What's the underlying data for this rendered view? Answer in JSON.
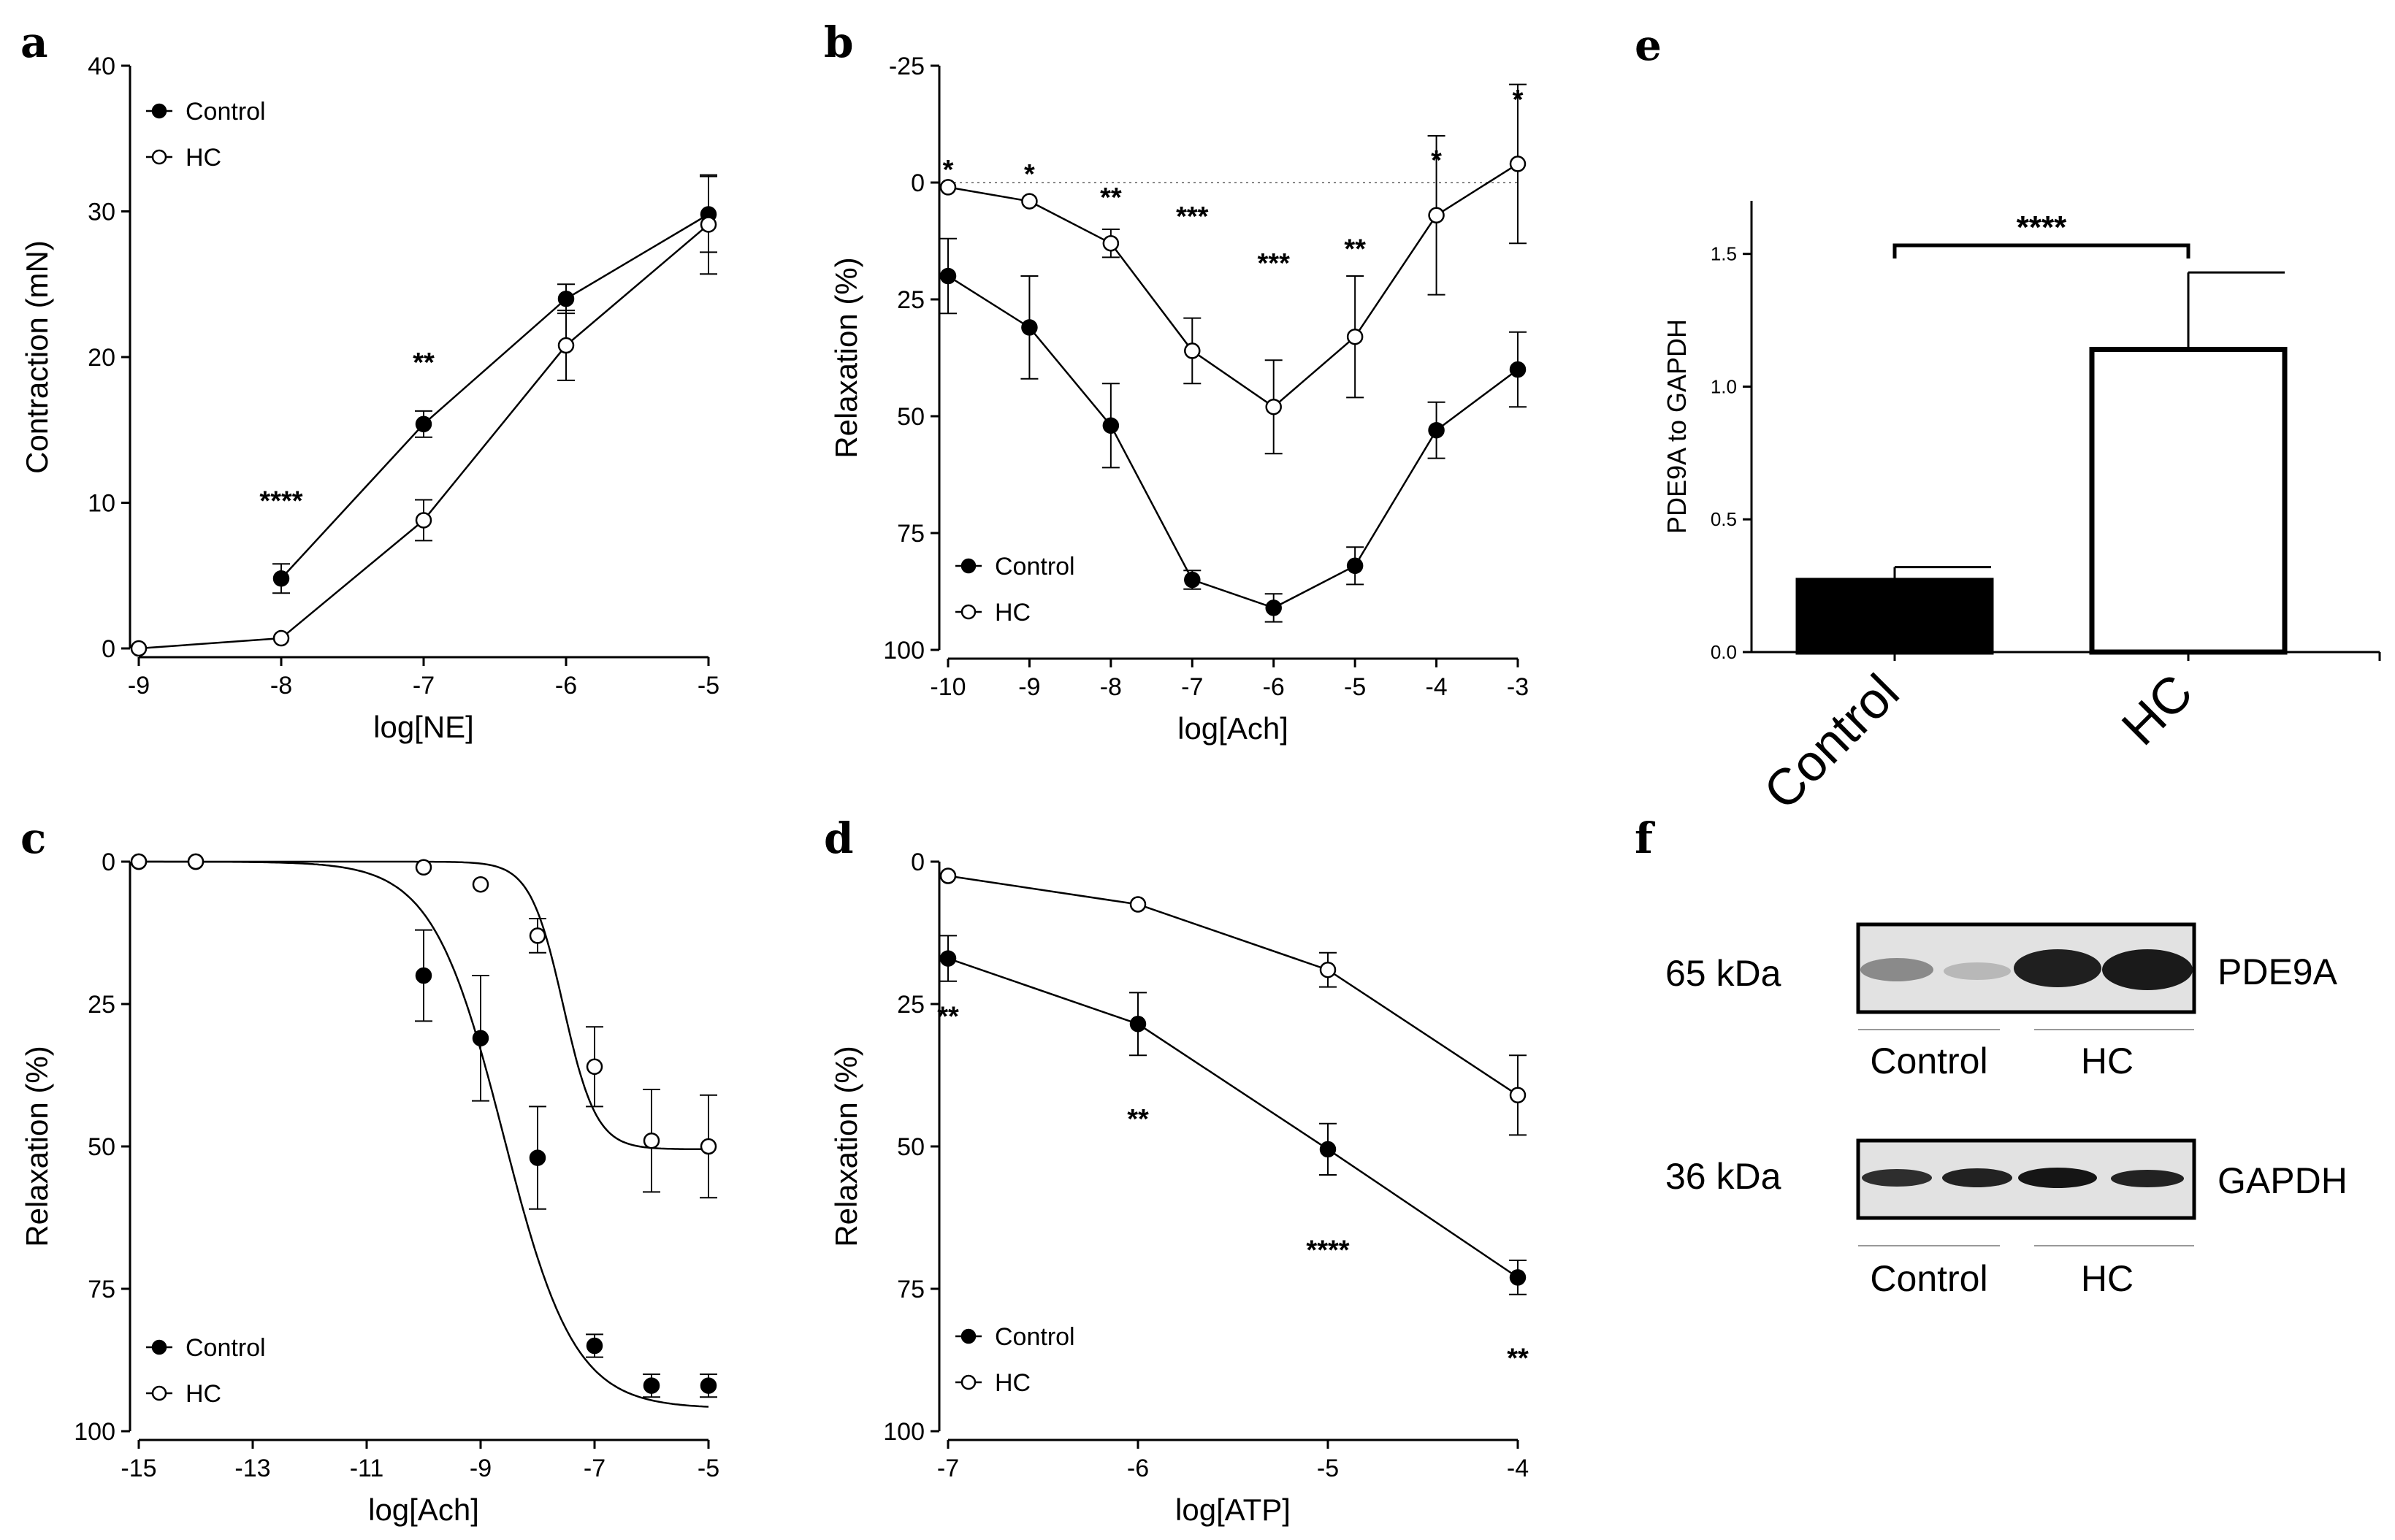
{
  "chart_data": [
    {
      "panel": "a",
      "type": "line",
      "xlabel": "log[NE]",
      "ylabel": "Contraction (mN)",
      "xlim": [
        -9,
        -5
      ],
      "ylim": [
        0,
        40
      ],
      "xticks": [
        -9,
        -8,
        -7,
        -6,
        -5
      ],
      "yticks": [
        0,
        10,
        20,
        30,
        40
      ],
      "legend": [
        "Control",
        "HC"
      ],
      "legend_position": "top-left",
      "series": [
        {
          "name": "Control",
          "marker": "filled",
          "x": [
            -8,
            -7,
            -6,
            -5
          ],
          "y": [
            4.8,
            15.4,
            24.0,
            29.8
          ],
          "err": [
            1.0,
            0.9,
            1.0,
            2.6
          ]
        },
        {
          "name": "HC",
          "marker": "open",
          "x": [
            -9,
            -8,
            -7,
            -6,
            -5
          ],
          "y": [
            0,
            0.7,
            8.8,
            20.8,
            29.1
          ],
          "err": [
            0,
            0,
            1.4,
            2.4,
            3.4
          ]
        }
      ],
      "sig": [
        {
          "x": -8,
          "y": 10.2,
          "text": "****"
        },
        {
          "x": -7,
          "y": 19.7,
          "text": "**"
        }
      ]
    },
    {
      "panel": "b",
      "type": "line",
      "xlabel": "log[Ach]",
      "ylabel": "Relaxation (%)",
      "xlim": [
        -10,
        -3
      ],
      "ylim": [
        -25,
        100
      ],
      "y_inverted": true,
      "xticks": [
        -10,
        -9,
        -8,
        -7,
        -6,
        -5,
        -4,
        -3
      ],
      "yticks": [
        -25,
        0,
        25,
        50,
        75,
        100
      ],
      "reference_line": 0,
      "legend": [
        "Control",
        "HC"
      ],
      "legend_position": "bottom-left",
      "series": [
        {
          "name": "Control",
          "marker": "filled",
          "x": [
            -10,
            -9,
            -8,
            -7,
            -6,
            -5,
            -4,
            -3
          ],
          "y": [
            20,
            31,
            52,
            85,
            91,
            82,
            53,
            40
          ],
          "err": [
            8,
            11,
            9,
            2,
            3,
            4,
            6,
            8
          ]
        },
        {
          "name": "HC",
          "marker": "open",
          "x": [
            -10,
            -9,
            -8,
            -7,
            -6,
            -5,
            -4,
            -3
          ],
          "y": [
            1,
            4,
            13,
            36,
            48,
            33,
            7,
            -4
          ],
          "err": [
            0,
            0,
            3,
            7,
            10,
            13,
            17,
            17
          ]
        }
      ],
      "sig": [
        {
          "x": -10,
          "y": -3,
          "text": "*"
        },
        {
          "x": -9,
          "y": -2,
          "text": "*"
        },
        {
          "x": -8,
          "y": 3,
          "text": "**"
        },
        {
          "x": -7,
          "y": 7,
          "text": "***"
        },
        {
          "x": -6,
          "y": 17,
          "text": "***"
        },
        {
          "x": -5,
          "y": 14,
          "text": "**"
        },
        {
          "x": -4,
          "y": -5,
          "text": "*"
        },
        {
          "x": -3,
          "y": -18,
          "text": "*"
        }
      ]
    },
    {
      "panel": "c",
      "type": "line",
      "xlabel": "log[Ach]",
      "ylabel": "Relaxation (%)",
      "xlim": [
        -15,
        -5
      ],
      "ylim": [
        0,
        100
      ],
      "y_inverted": true,
      "xticks": [
        -15,
        -13,
        -11,
        -9,
        -7,
        -5
      ],
      "yticks": [
        0,
        25,
        50,
        75,
        100
      ],
      "legend": [
        "Control",
        "HC"
      ],
      "legend_position": "bottom-left",
      "series": [
        {
          "name": "Control",
          "marker": "filled",
          "x": [
            -15,
            -14,
            -10,
            -9,
            -8,
            -7,
            -6,
            -5
          ],
          "y": [
            0,
            0,
            20,
            31,
            52,
            85,
            92,
            92
          ],
          "err": [
            0,
            0,
            8,
            11,
            9,
            2,
            2,
            2
          ],
          "fit": {
            "bottom": 0,
            "top": 96,
            "logEC50": -8.6,
            "hill": 0.7
          }
        },
        {
          "name": "HC",
          "marker": "open",
          "x": [
            -15,
            -14,
            -10,
            -9,
            -8,
            -7,
            -6,
            -5
          ],
          "y": [
            0,
            0,
            1,
            4,
            13,
            36,
            49,
            50
          ],
          "err": [
            0,
            0,
            0,
            0,
            3,
            7,
            9,
            9
          ],
          "fit": {
            "bottom": 0,
            "top": 50.5,
            "logEC50": -7.55,
            "hill": 1.5
          }
        }
      ]
    },
    {
      "panel": "d",
      "type": "line",
      "xlabel": "log[ATP]",
      "ylabel": "Relaxation (%)",
      "xlim": [
        -7,
        -4
      ],
      "ylim": [
        0,
        100
      ],
      "y_inverted": true,
      "xticks": [
        -7,
        -6,
        -5,
        -4
      ],
      "yticks": [
        0,
        25,
        50,
        75,
        100
      ],
      "legend": [
        "Control",
        "HC"
      ],
      "legend_position": "bottom-left",
      "series": [
        {
          "name": "Control",
          "marker": "filled",
          "x": [
            -7,
            -6,
            -5,
            -4
          ],
          "y": [
            17,
            28.5,
            50.5,
            73
          ],
          "err": [
            4,
            5.5,
            4.5,
            3
          ]
        },
        {
          "name": "HC",
          "marker": "open",
          "x": [
            -7,
            -6,
            -5,
            -4
          ],
          "y": [
            2.5,
            7.5,
            19,
            41
          ],
          "err": [
            0,
            0,
            3,
            7
          ]
        }
      ],
      "sig": [
        {
          "x": -7,
          "y": 27,
          "text": "**"
        },
        {
          "x": -6,
          "y": 45,
          "text": "**"
        },
        {
          "x": -5,
          "y": 68,
          "text": "****"
        },
        {
          "x": -4,
          "y": 87,
          "text": "**"
        }
      ]
    },
    {
      "panel": "e",
      "type": "bar",
      "categories": [
        "Control",
        "HC"
      ],
      "values": [
        0.27,
        1.14
      ],
      "err": [
        0.05,
        0.29
      ],
      "ylabel": "PDE9A to GAPDH",
      "ylim": [
        0,
        1.7
      ],
      "yticks": [
        0.0,
        0.5,
        1.0,
        1.5
      ],
      "significance": {
        "from": "Control",
        "to": "HC",
        "text": "****"
      }
    }
  ],
  "panel_e_ytick_labels": [
    "0.0",
    "0.5",
    "1.0",
    "1.5"
  ],
  "blot": {
    "top": {
      "kda": "65 kDa",
      "protein": "PDE9A",
      "left_group": "Control",
      "right_group": "HC"
    },
    "bottom": {
      "kda": "36 kDa",
      "protein": "GAPDH",
      "left_group": "Control",
      "right_group": "HC"
    }
  },
  "panel_letters": [
    "a",
    "b",
    "c",
    "d",
    "e",
    "f"
  ],
  "colors": {
    "ink": "#000000",
    "open_fill": "#ffffff",
    "blot_bg": "#e0e0e0",
    "band_dark": "#1a1a1a",
    "band_light": "#8a8a8a"
  }
}
